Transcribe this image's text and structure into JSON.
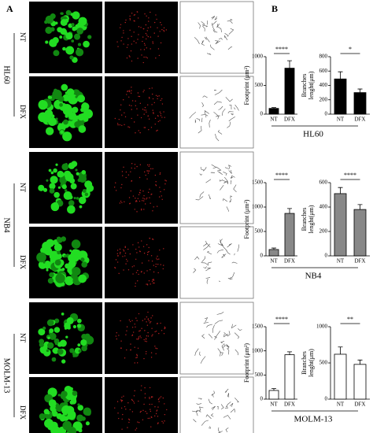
{
  "panels": {
    "label_a": "A",
    "label_b": "B",
    "cell_lines": [
      {
        "name": "HL60",
        "conditions": [
          "NT",
          "DFX"
        ]
      },
      {
        "name": "NB4",
        "conditions": [
          "NT",
          "DFX"
        ]
      },
      {
        "name": "MOLM-13",
        "conditions": [
          "NT",
          "DFX"
        ]
      }
    ]
  },
  "chart_data": [
    {
      "type": "bar",
      "ylabel": [
        "Footprint (μm²)"
      ],
      "categories": [
        "NT",
        "DFX"
      ],
      "values": [
        100,
        800
      ],
      "errors": [
        15,
        130
      ],
      "ylim": [
        0,
        1000
      ],
      "yticks": [
        0,
        500,
        1000
      ],
      "color": "#000000",
      "edgecolor": "#000000",
      "significance": "****"
    },
    {
      "type": "bar",
      "ylabel": [
        "Branches",
        "lenght(μm)"
      ],
      "categories": [
        "NT",
        "DFX"
      ],
      "values": [
        490,
        300
      ],
      "errors": [
        100,
        50
      ],
      "ylim": [
        0,
        800
      ],
      "yticks": [
        0,
        200,
        400,
        600,
        800
      ],
      "color": "#000000",
      "edgecolor": "#000000",
      "significance": "*"
    },
    {
      "type": "bar",
      "ylabel": [
        "Footprint (μm²)"
      ],
      "categories": [
        "NT",
        "DFX"
      ],
      "values": [
        130,
        870
      ],
      "errors": [
        30,
        100
      ],
      "ylim": [
        0,
        1500
      ],
      "yticks": [
        0,
        500,
        1000,
        1500
      ],
      "color": "#888888",
      "edgecolor": "#000000",
      "significance": "****"
    },
    {
      "type": "bar",
      "ylabel": [
        "Branches",
        "lenght(μm)"
      ],
      "categories": [
        "NT",
        "DFX"
      ],
      "values": [
        510,
        380
      ],
      "errors": [
        50,
        40
      ],
      "ylim": [
        0,
        600
      ],
      "yticks": [
        0,
        200,
        400,
        600
      ],
      "color": "#888888",
      "edgecolor": "#000000",
      "significance": "****"
    },
    {
      "type": "bar",
      "ylabel": [
        "Footprint (μm²)"
      ],
      "categories": [
        "NT",
        "DFX"
      ],
      "values": [
        180,
        920
      ],
      "errors": [
        40,
        60
      ],
      "ylim": [
        0,
        1500
      ],
      "yticks": [
        0,
        500,
        1000,
        1500
      ],
      "color": "#ffffff",
      "edgecolor": "#000000",
      "significance": "****"
    },
    {
      "type": "bar",
      "ylabel": [
        "Branches",
        "lenght(μm)"
      ],
      "categories": [
        "NT",
        "DFX"
      ],
      "values": [
        620,
        480
      ],
      "errors": [
        100,
        60
      ],
      "ylim": [
        0,
        1000
      ],
      "yticks": [
        0,
        500,
        1000
      ],
      "color": "#ffffff",
      "edgecolor": "#000000",
      "significance": "**"
    }
  ]
}
